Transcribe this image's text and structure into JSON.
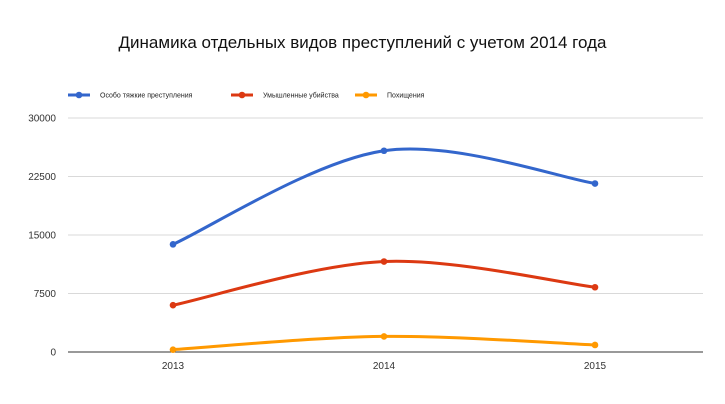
{
  "chart_data": {
    "type": "line",
    "title": "Динамика отдельных видов преступлений с учетом 2014 года",
    "xlabel": "",
    "ylabel": "",
    "categories": [
      "2013",
      "2014",
      "2015"
    ],
    "ylim": [
      0,
      30000
    ],
    "yticks": [
      0,
      7500,
      15000,
      22500,
      30000
    ],
    "ytick_labels": [
      "0",
      "7500",
      "15000",
      "22500",
      "30000"
    ],
    "grid": true,
    "legend_position": "top-left",
    "series": [
      {
        "name": "Особо тяжкие преступления",
        "color": "#3366cc",
        "values": [
          13800,
          25800,
          21600
        ]
      },
      {
        "name": "Умышленные убийства",
        "color": "#dc3912",
        "values": [
          6000,
          11600,
          8300
        ]
      },
      {
        "name": "Похищения",
        "color": "#ff9900",
        "values": [
          300,
          2000,
          900
        ]
      }
    ]
  }
}
